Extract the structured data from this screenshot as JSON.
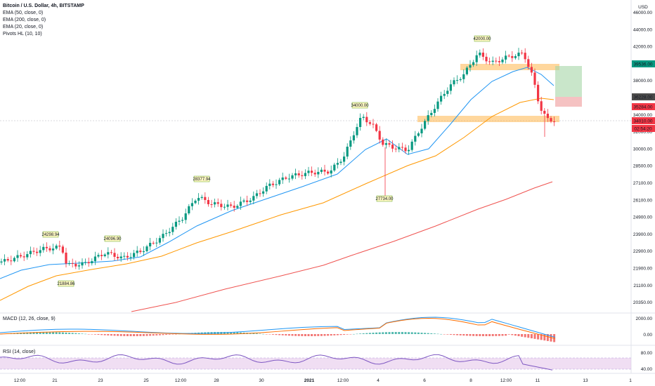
{
  "legend": {
    "title": "Bitcoin / U.S. Dollar, 4h, BITSTAMP",
    "items": [
      "EMA (50, close, 0)",
      "EMA (200, close, 0)",
      "EMA (20, close, 0)",
      "Pivots HL (10, 10)"
    ]
  },
  "currency": "USD",
  "macd_label": "MACD (12, 26, close, 9)",
  "rsi_label": "RSI (14, close)",
  "price_axis": [
    "46000.00",
    "44000.00",
    "42000.00",
    "40000.00",
    "38000.00",
    "36000.00",
    "34000.00",
    "32000.00",
    "30000.00",
    "28500.00",
    "27100.00",
    "26100.00",
    "24900.00",
    "23900.00",
    "22900.00",
    "21900.00",
    "21100.00",
    "20350.00"
  ],
  "price_tags": [
    {
      "label": "39536.00",
      "color": "#089981"
    },
    {
      "label": "36228.00",
      "color": "#4a4a4a"
    },
    {
      "label": "35284.00",
      "color": "#f23645"
    },
    {
      "label": "34010.00",
      "color": "#f23645"
    },
    {
      "label": "02:54:20",
      "color": "#f23645"
    }
  ],
  "macd_axis": [
    "2000.00",
    "0.00"
  ],
  "rsi_axis": [
    "80.00",
    "40.00"
  ],
  "time_axis": [
    "12:00",
    "21",
    "23",
    "25",
    "12:00",
    "28",
    "30",
    "2021",
    "12:00",
    "4",
    "6",
    "8",
    "12:00",
    "11",
    "13",
    "1"
  ],
  "pivots": [
    "24298.94",
    "24096.90",
    "21884.86",
    "28377.94",
    "34000.00",
    "27734.00",
    "42000.00"
  ],
  "colors": {
    "up": "#089981",
    "down": "#f23645",
    "ema20": "#2196f3",
    "ema50": "#ff9800",
    "ema200": "#ef5350",
    "macd": "#2196f3",
    "signal": "#ff6d00",
    "rsi": "#7e57c2"
  },
  "chart_data": {
    "type": "candlestick",
    "title": "Bitcoin / U.S. Dollar, 4h, BITSTAMP",
    "indicators": [
      "EMA (50, close, 0)",
      "EMA (200, close, 0)",
      "EMA (20, close, 0)",
      "Pivots HL (10, 10)",
      "MACD (12, 26, close, 9)",
      "RSI (14, close)"
    ],
    "series": [
      {
        "name": "EMA (20, close, 0)",
        "values": [
          22000,
          22400,
          22900,
          23300,
          23500,
          24400,
          25800,
          27200,
          27800,
          28600,
          29400,
          30800,
          31400,
          32600,
          36000,
          38500,
          39600,
          37900
        ]
      },
      {
        "name": "EMA (50, close, 0)",
        "values": [
          21200,
          21800,
          22200,
          22600,
          22900,
          23600,
          24600,
          25800,
          26300,
          26800,
          27700,
          28800,
          30100,
          31400,
          33400,
          35300,
          36400,
          36100
        ]
      },
      {
        "name": "EMA (200, close, 0)",
        "values": [
          19950,
          20500,
          21000,
          21500,
          22100,
          22500,
          23100,
          23500,
          24200,
          25300,
          26200,
          27000,
          27800,
          28200,
          28500
        ]
      }
    ],
    "pivot_labels": [
      "24298.94",
      "24096.90",
      "21884.86",
      "28377.94",
      "34000.00",
      "27734.00",
      "42000.00"
    ],
    "levels": {
      "resistance_zone": "39536.00",
      "support_zone": "34010.00",
      "target": "39536.00",
      "entry": "36228.00",
      "stop": "35284.00"
    },
    "yrange": [
      20350,
      46000
    ]
  }
}
